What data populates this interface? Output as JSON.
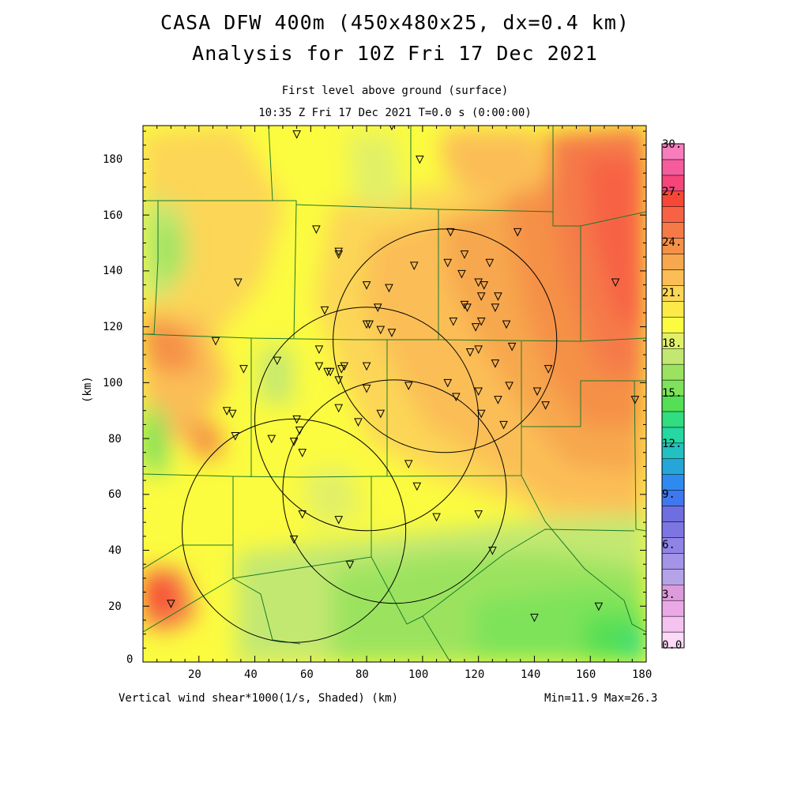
{
  "header": {
    "title_line1": "CASA DFW 400m (450x480x25, dx=0.4 km)",
    "title_line2": "Analysis for 10Z Fri 17 Dec 2021",
    "level": "First level above ground (surface)",
    "time": "10:35 Z Fri 17 Dec 2021    T=0.0 s (0:00:00)"
  },
  "footer": {
    "field_label": "Vertical wind shear*1000(1/s, Shaded)  (km)",
    "minmax": "Min=11.9 Max=26.3"
  },
  "axes": {
    "x_ticks": [
      "0",
      "20",
      "40",
      "60",
      "80",
      "100",
      "120",
      "140",
      "160",
      "180"
    ],
    "y_ticks": [
      "0",
      "20",
      "40",
      "60",
      "80",
      "100",
      "120",
      "140",
      "160",
      "180"
    ],
    "y_label": "(km)",
    "x_range_km": [
      0,
      180
    ],
    "y_range_km": [
      0,
      192
    ]
  },
  "colorbar": {
    "labels": [
      "30.",
      "27.",
      "24.",
      "21.",
      "18.",
      "15.",
      "12.",
      "9.",
      "6.",
      "3.",
      "0.0"
    ],
    "colors_bottom_to_top": [
      "#fbd9f7",
      "#f5c3ef",
      "#eba8e6",
      "#dd9bdb",
      "#b5a3e8",
      "#a394e8",
      "#8f84e6",
      "#7d76e2",
      "#6e6ee0",
      "#3f78ee",
      "#2f8af0",
      "#25a5d8",
      "#22c0c0",
      "#25d7a2",
      "#30dd80",
      "#54df54",
      "#7ee35a",
      "#9be35e",
      "#c3e872",
      "#e2f068",
      "#fbfb40",
      "#fbea48",
      "#fcd656",
      "#fbbe56",
      "#f7a74e",
      "#f59047",
      "#f57a48",
      "#f76244",
      "#f74736",
      "#f5457a",
      "#f65b9d",
      "#f77dbd"
    ]
  },
  "map": {
    "radar_circles_km": [
      {
        "x": 108,
        "y": 115,
        "r": 40
      },
      {
        "x": 80,
        "y": 87,
        "r": 40
      },
      {
        "x": 90,
        "y": 61,
        "r": 40
      },
      {
        "x": 54,
        "y": 47,
        "r": 40
      }
    ],
    "stations_km": [
      [
        55,
        189
      ],
      [
        89,
        192
      ],
      [
        99,
        180
      ],
      [
        62,
        155
      ],
      [
        70,
        146
      ],
      [
        70,
        147
      ],
      [
        110,
        154
      ],
      [
        134,
        154
      ],
      [
        97,
        142
      ],
      [
        109,
        143
      ],
      [
        115,
        146
      ],
      [
        124,
        143
      ],
      [
        34,
        136
      ],
      [
        80,
        135
      ],
      [
        88,
        134
      ],
      [
        114,
        139
      ],
      [
        120,
        136
      ],
      [
        122,
        135
      ],
      [
        121,
        131
      ],
      [
        127,
        131
      ],
      [
        65,
        126
      ],
      [
        84,
        127
      ],
      [
        115,
        128
      ],
      [
        116,
        127
      ],
      [
        126,
        127
      ],
      [
        81,
        121
      ],
      [
        80,
        121
      ],
      [
        85,
        119
      ],
      [
        89,
        118
      ],
      [
        111,
        122
      ],
      [
        119,
        120
      ],
      [
        121,
        122
      ],
      [
        130,
        121
      ],
      [
        26,
        115
      ],
      [
        63,
        112
      ],
      [
        117,
        111
      ],
      [
        120,
        112
      ],
      [
        132,
        113
      ],
      [
        36,
        105
      ],
      [
        48,
        108
      ],
      [
        63,
        106
      ],
      [
        67,
        104
      ],
      [
        71,
        105
      ],
      [
        72,
        106
      ],
      [
        66,
        104
      ],
      [
        70,
        101
      ],
      [
        80,
        106
      ],
      [
        126,
        107
      ],
      [
        145,
        105
      ],
      [
        109,
        100
      ],
      [
        95,
        99
      ],
      [
        80,
        98
      ],
      [
        120,
        97
      ],
      [
        141,
        97
      ],
      [
        176,
        94
      ],
      [
        30,
        90
      ],
      [
        32,
        89
      ],
      [
        70,
        91
      ],
      [
        112,
        95
      ],
      [
        127,
        94
      ],
      [
        131,
        99
      ],
      [
        144,
        92
      ],
      [
        85,
        89
      ],
      [
        77,
        86
      ],
      [
        121,
        89
      ],
      [
        129,
        85
      ],
      [
        55,
        87
      ],
      [
        56,
        83
      ],
      [
        46,
        80
      ],
      [
        54,
        79
      ],
      [
        33,
        81
      ],
      [
        57,
        75
      ],
      [
        95,
        71
      ],
      [
        98,
        63
      ],
      [
        57,
        53
      ],
      [
        70,
        51
      ],
      [
        105,
        52
      ],
      [
        120,
        53
      ],
      [
        54,
        44
      ],
      [
        74,
        35
      ],
      [
        125,
        40
      ],
      [
        10,
        21
      ],
      [
        140,
        16
      ],
      [
        163,
        20
      ],
      [
        169,
        136
      ]
    ]
  }
}
